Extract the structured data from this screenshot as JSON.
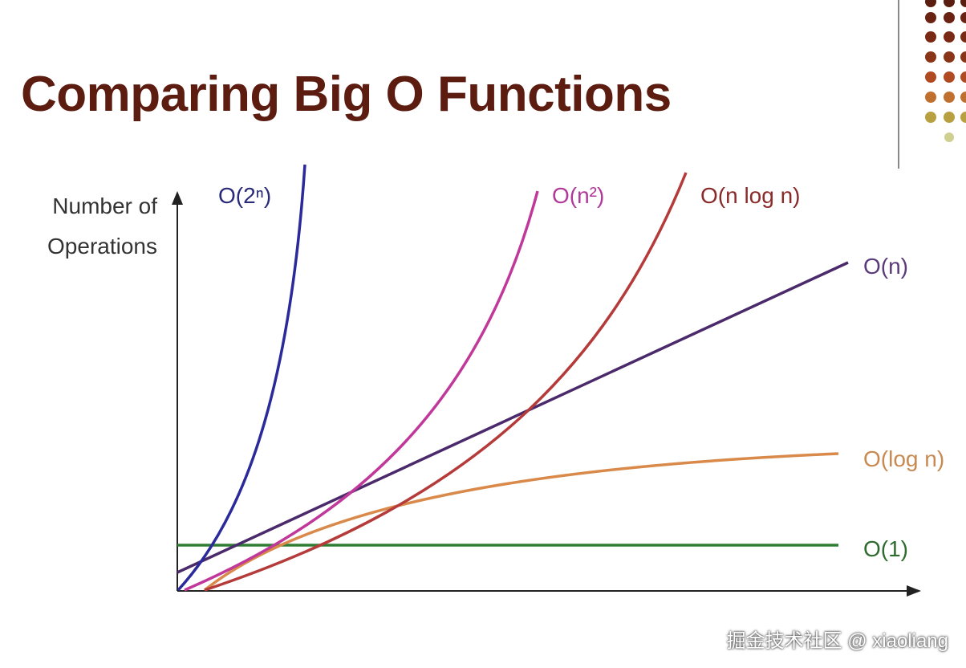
{
  "title": "Comparing Big O Functions",
  "y_axis_label": "Number of Operations",
  "curves": [
    {
      "label": "O(2ⁿ)"
    },
    {
      "label": "O(n²)"
    },
    {
      "label": "O(n log n)"
    },
    {
      "label": "O(n)"
    },
    {
      "label": "O(log n)"
    },
    {
      "label": "O(1)"
    }
  ],
  "watermark": "掘金技术社区 @ xiaoliang"
}
